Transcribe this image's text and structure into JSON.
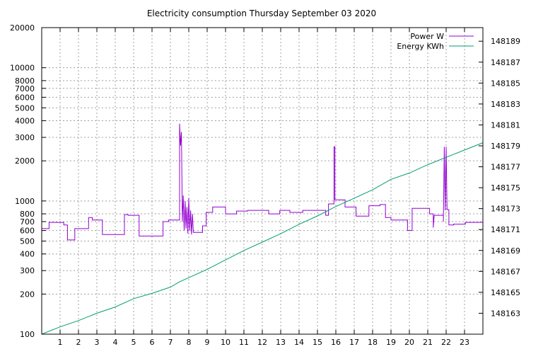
{
  "chart_data": {
    "type": "line",
    "title": "Electricity consumption Thursday September 03 2020",
    "xlabel": "",
    "ylabel": "",
    "x_range": [
      0,
      24
    ],
    "x_ticks": [
      1,
      2,
      3,
      4,
      5,
      6,
      7,
      8,
      9,
      10,
      11,
      12,
      13,
      14,
      15,
      16,
      17,
      18,
      19,
      20,
      21,
      22,
      23
    ],
    "y_left": {
      "scale": "log",
      "range": [
        100,
        20000
      ],
      "ticks": [
        100,
        200,
        300,
        400,
        500,
        600,
        700,
        800,
        1000,
        2000,
        3000,
        4000,
        5000,
        6000,
        7000,
        8000,
        10000,
        20000
      ]
    },
    "y_right": {
      "scale": "linear",
      "range": [
        148161.0,
        148190.3
      ],
      "ticks": [
        148163,
        148165,
        148167,
        148169,
        148171,
        148173,
        148175,
        148177,
        148179,
        148181,
        148183,
        148185,
        148187,
        148189
      ]
    },
    "grid": true,
    "legend_position": "top-right",
    "colors": {
      "power": "#9400d3",
      "energy": "#009e73"
    },
    "series": [
      {
        "name": "Power W",
        "axis": "left",
        "points": [
          [
            0.0,
            620
          ],
          [
            0.4,
            620
          ],
          [
            0.4,
            690
          ],
          [
            1.2,
            690
          ],
          [
            1.2,
            660
          ],
          [
            1.4,
            660
          ],
          [
            1.4,
            510
          ],
          [
            1.8,
            510
          ],
          [
            1.8,
            620
          ],
          [
            2.55,
            620
          ],
          [
            2.55,
            750
          ],
          [
            2.75,
            750
          ],
          [
            2.75,
            720
          ],
          [
            3.3,
            720
          ],
          [
            3.3,
            560
          ],
          [
            4.5,
            560
          ],
          [
            4.5,
            790
          ],
          [
            4.7,
            790
          ],
          [
            4.7,
            780
          ],
          [
            5.3,
            780
          ],
          [
            5.3,
            545
          ],
          [
            6.6,
            545
          ],
          [
            6.6,
            700
          ],
          [
            6.9,
            700
          ],
          [
            6.9,
            720
          ],
          [
            7.5,
            720
          ],
          [
            7.5,
            3800
          ],
          [
            7.55,
            2600
          ],
          [
            7.6,
            3300
          ],
          [
            7.65,
            700
          ],
          [
            7.7,
            1100
          ],
          [
            7.75,
            600
          ],
          [
            7.8,
            1000
          ],
          [
            7.85,
            620
          ],
          [
            7.9,
            900
          ],
          [
            7.95,
            570
          ],
          [
            8.0,
            1050
          ],
          [
            8.05,
            600
          ],
          [
            8.1,
            850
          ],
          [
            8.15,
            560
          ],
          [
            8.2,
            800
          ],
          [
            8.25,
            580
          ],
          [
            8.75,
            580
          ],
          [
            8.75,
            650
          ],
          [
            8.95,
            650
          ],
          [
            8.95,
            820
          ],
          [
            9.3,
            820
          ],
          [
            9.3,
            900
          ],
          [
            10.0,
            900
          ],
          [
            10.0,
            800
          ],
          [
            10.6,
            800
          ],
          [
            10.6,
            840
          ],
          [
            11.2,
            840
          ],
          [
            11.2,
            850
          ],
          [
            12.35,
            850
          ],
          [
            12.35,
            800
          ],
          [
            12.95,
            800
          ],
          [
            12.95,
            850
          ],
          [
            13.5,
            850
          ],
          [
            13.5,
            820
          ],
          [
            14.2,
            820
          ],
          [
            14.2,
            850
          ],
          [
            15.45,
            850
          ],
          [
            15.45,
            780
          ],
          [
            15.6,
            780
          ],
          [
            15.6,
            950
          ],
          [
            15.9,
            950
          ],
          [
            15.9,
            2550
          ],
          [
            15.95,
            2550
          ],
          [
            15.95,
            1020
          ],
          [
            16.5,
            1020
          ],
          [
            16.5,
            900
          ],
          [
            17.1,
            900
          ],
          [
            17.1,
            770
          ],
          [
            17.8,
            770
          ],
          [
            17.8,
            920
          ],
          [
            18.4,
            920
          ],
          [
            18.4,
            940
          ],
          [
            18.7,
            940
          ],
          [
            18.7,
            750
          ],
          [
            19.0,
            750
          ],
          [
            19.0,
            720
          ],
          [
            19.9,
            720
          ],
          [
            19.9,
            600
          ],
          [
            20.15,
            600
          ],
          [
            20.15,
            880
          ],
          [
            21.1,
            880
          ],
          [
            21.1,
            800
          ],
          [
            21.3,
            800
          ],
          [
            21.3,
            630
          ],
          [
            21.35,
            780
          ],
          [
            21.85,
            780
          ],
          [
            21.85,
            700
          ],
          [
            21.9,
            2550
          ],
          [
            21.95,
            850
          ],
          [
            22.0,
            2550
          ],
          [
            22.05,
            860
          ],
          [
            22.15,
            860
          ],
          [
            22.15,
            660
          ],
          [
            22.4,
            660
          ],
          [
            22.4,
            670
          ],
          [
            23.05,
            670
          ],
          [
            23.05,
            690
          ],
          [
            24.0,
            690
          ]
        ]
      },
      {
        "name": "Energy KWh",
        "axis": "right",
        "points": [
          [
            0.0,
            148161.0
          ],
          [
            1.0,
            148161.7
          ],
          [
            2.0,
            148162.3
          ],
          [
            3.0,
            148163.0
          ],
          [
            4.0,
            148163.6
          ],
          [
            5.0,
            148164.4
          ],
          [
            6.0,
            148164.9
          ],
          [
            7.0,
            148165.5
          ],
          [
            7.5,
            148166.0
          ],
          [
            8.0,
            148166.4
          ],
          [
            9.0,
            148167.2
          ],
          [
            10.0,
            148168.1
          ],
          [
            11.0,
            148169.0
          ],
          [
            12.0,
            148169.8
          ],
          [
            13.0,
            148170.6
          ],
          [
            14.0,
            148171.5
          ],
          [
            15.0,
            148172.3
          ],
          [
            16.0,
            148173.2
          ],
          [
            17.0,
            148174.0
          ],
          [
            18.0,
            148174.8
          ],
          [
            19.0,
            148175.8
          ],
          [
            20.0,
            148176.4
          ],
          [
            21.0,
            148177.2
          ],
          [
            22.0,
            148177.9
          ],
          [
            23.0,
            148178.6
          ],
          [
            24.0,
            148179.3
          ]
        ]
      }
    ]
  }
}
